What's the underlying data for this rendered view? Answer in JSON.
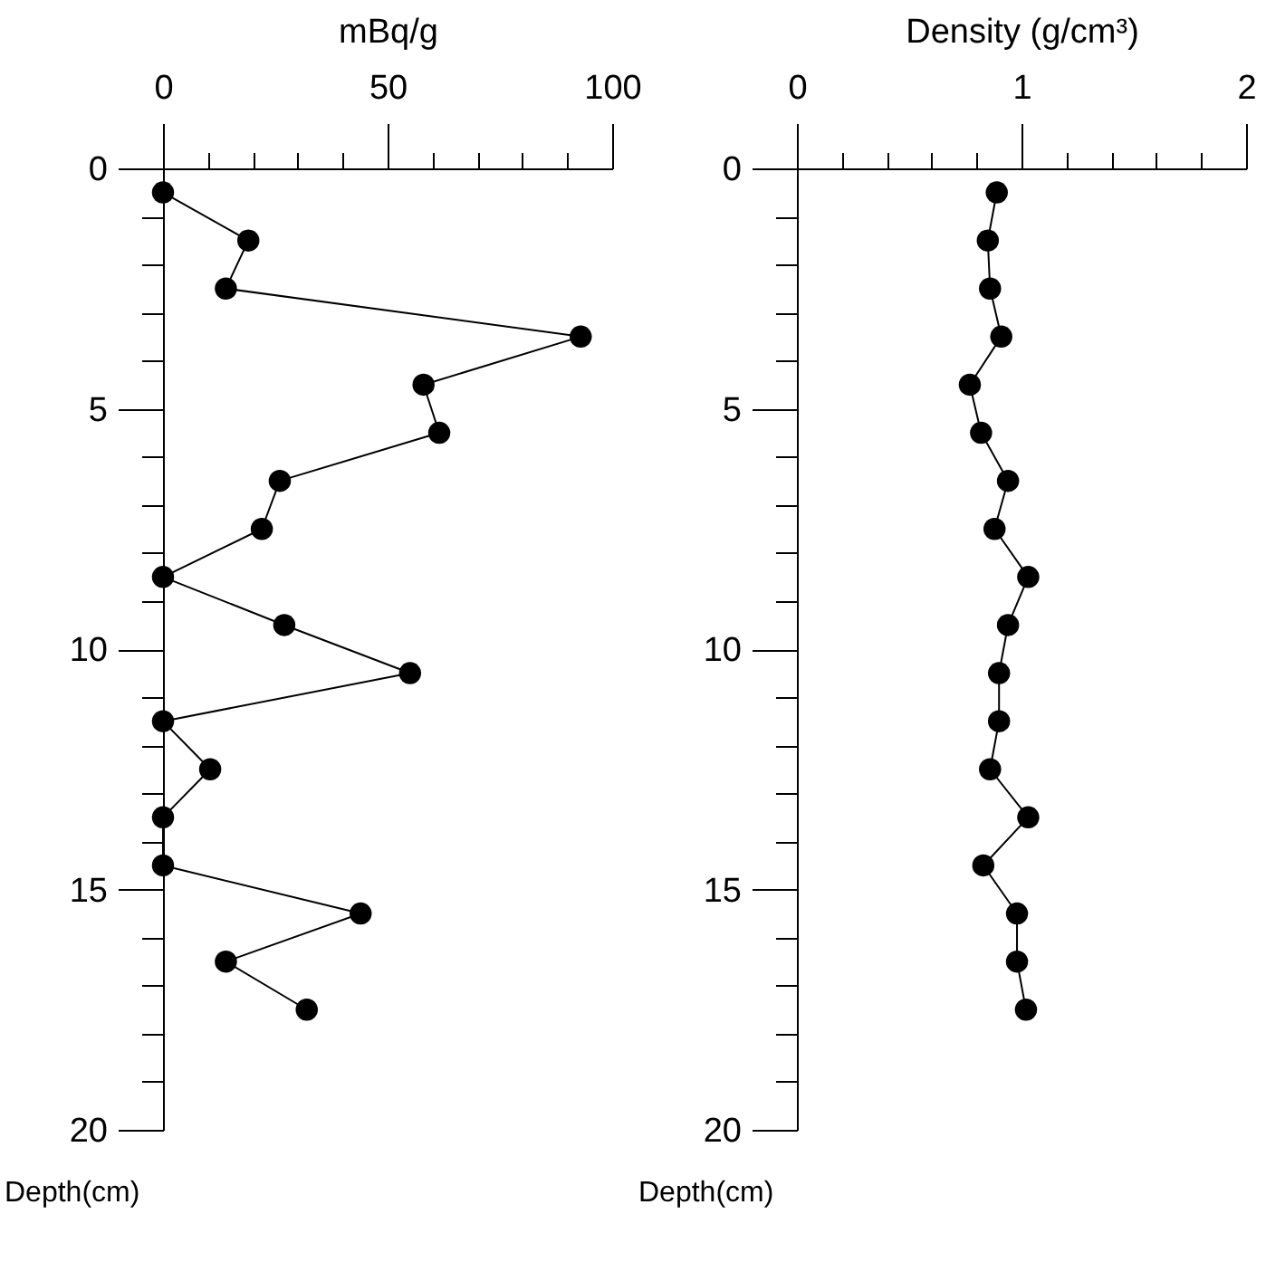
{
  "chart_data": [
    {
      "type": "line",
      "xlabel": "mBq/g",
      "ylabel": "Depth(cm)",
      "xlim": [
        0,
        100
      ],
      "xticks": [
        0,
        {
          "value": 10,
          "label": null
        },
        {
          "value": 20,
          "label": null
        },
        {
          "value": 30,
          "label": null
        },
        {
          "value": 40,
          "label": null
        },
        50,
        {
          "value": 60,
          "label": null
        },
        {
          "value": 70,
          "label": null
        },
        {
          "value": 80,
          "label": null
        },
        {
          "value": 90,
          "label": null
        },
        100
      ],
      "ylim": [
        20,
        0
      ],
      "yticks": [
        0,
        {
          "value": 1,
          "label": null
        },
        {
          "value": 2,
          "label": null
        },
        {
          "value": 3,
          "label": null
        },
        {
          "value": 4,
          "label": null
        },
        5,
        {
          "value": 6,
          "label": null
        },
        {
          "value": 7,
          "label": null
        },
        {
          "value": 8,
          "label": null
        },
        {
          "value": 9,
          "label": null
        },
        10,
        {
          "value": 11,
          "label": null
        },
        {
          "value": 12,
          "label": null
        },
        {
          "value": 13,
          "label": null
        },
        {
          "value": 14,
          "label": null
        },
        15,
        {
          "value": 16,
          "label": null
        },
        {
          "value": 17,
          "label": null
        },
        {
          "value": 18,
          "label": null
        },
        {
          "value": 19,
          "label": null
        },
        20
      ],
      "grid": false,
      "marker": "circle",
      "line_style": "solid",
      "series": [
        {
          "color": "#000000",
          "x": [
            0,
            19,
            14,
            93,
            58,
            61.5,
            26,
            22,
            0,
            27,
            55,
            0,
            10.5,
            0,
            0,
            44,
            14,
            32
          ],
          "values": [
            0.5,
            1.5,
            2.5,
            3.5,
            4.5,
            5.5,
            6.5,
            7.5,
            8.5,
            9.5,
            10.5,
            11.5,
            12.5,
            13.5,
            14.5,
            15.5,
            16.5,
            17.5
          ]
        }
      ]
    },
    {
      "type": "line",
      "xlabel": "Density (g/cm³)",
      "ylabel": "Depth(cm)",
      "xlim": [
        0,
        2
      ],
      "xticks": [
        0,
        {
          "value": 0.2,
          "label": null
        },
        {
          "value": 0.4,
          "label": null
        },
        {
          "value": 0.6,
          "label": null
        },
        {
          "value": 0.8,
          "label": null
        },
        1,
        {
          "value": 1.2,
          "label": null
        },
        {
          "value": 1.4,
          "label": null
        },
        {
          "value": 1.6,
          "label": null
        },
        {
          "value": 1.8,
          "label": null
        },
        2
      ],
      "ylim": [
        20,
        0
      ],
      "yticks": [
        0,
        {
          "value": 1,
          "label": null
        },
        {
          "value": 2,
          "label": null
        },
        {
          "value": 3,
          "label": null
        },
        {
          "value": 4,
          "label": null
        },
        5,
        {
          "value": 6,
          "label": null
        },
        {
          "value": 7,
          "label": null
        },
        {
          "value": 8,
          "label": null
        },
        {
          "value": 9,
          "label": null
        },
        10,
        {
          "value": 11,
          "label": null
        },
        {
          "value": 12,
          "label": null
        },
        {
          "value": 13,
          "label": null
        },
        {
          "value": 14,
          "label": null
        },
        15,
        {
          "value": 16,
          "label": null
        },
        {
          "value": 17,
          "label": null
        },
        {
          "value": 18,
          "label": null
        },
        {
          "value": 19,
          "label": null
        },
        20
      ],
      "grid": false,
      "marker": "circle",
      "line_style": "solid",
      "series": [
        {
          "color": "#000000",
          "x": [
            0.89,
            0.85,
            0.86,
            0.91,
            0.77,
            0.82,
            0.94,
            0.88,
            1.03,
            0.94,
            0.9,
            0.9,
            0.86,
            1.03,
            0.83,
            0.98,
            0.98,
            1.02
          ],
          "values": [
            0.5,
            1.5,
            2.5,
            3.5,
            4.5,
            5.5,
            6.5,
            7.5,
            8.5,
            9.5,
            10.5,
            11.5,
            12.5,
            13.5,
            14.5,
            15.5,
            16.5,
            17.5
          ]
        }
      ]
    }
  ]
}
